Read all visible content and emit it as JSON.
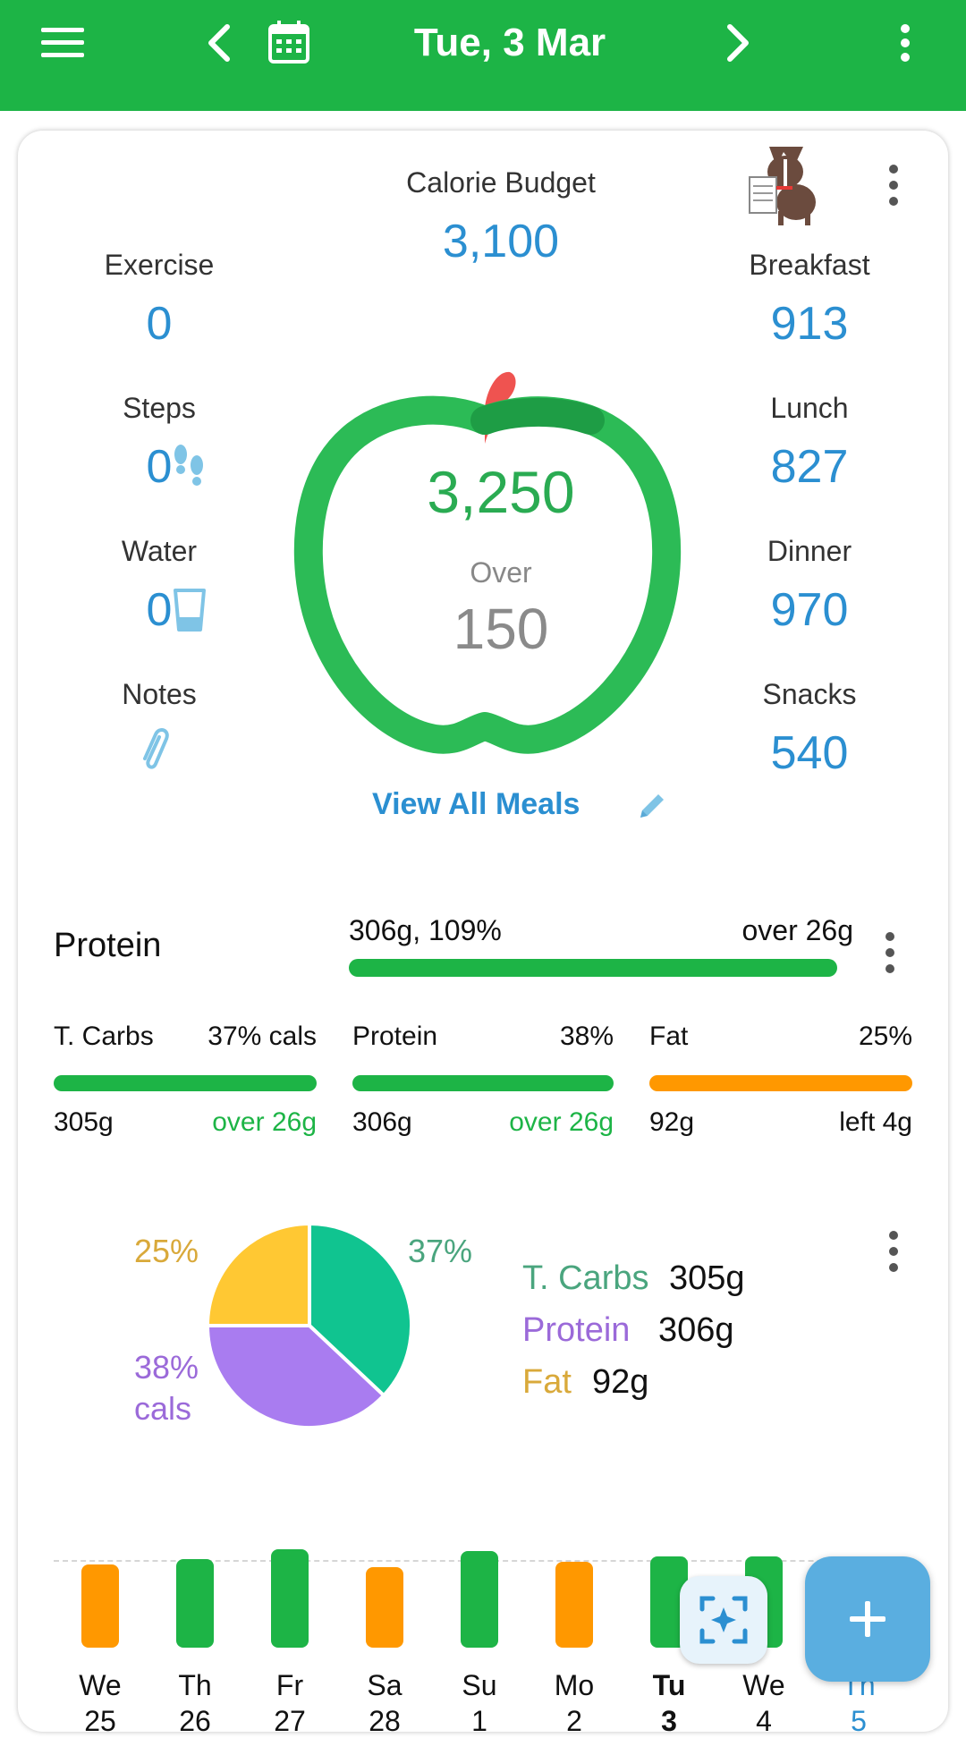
{
  "header": {
    "date": "Tue, 3 Mar",
    "icons": [
      "menu-icon",
      "chevron-left-icon",
      "calendar-icon",
      "chevron-right-icon",
      "more-vert-icon"
    ],
    "bg_color": "#1db446"
  },
  "summary": {
    "budget_label": "Calorie Budget",
    "budget_value": "3,100",
    "consumed": "3,250",
    "over_label": "Over",
    "over_value": "150",
    "view_all": "View All Meals",
    "left": [
      {
        "label": "Exercise",
        "value": "0"
      },
      {
        "label": "Steps",
        "value": "0"
      },
      {
        "label": "Water",
        "value": "0"
      },
      {
        "label": "Notes",
        "value": ""
      }
    ],
    "right": [
      {
        "label": "Breakfast",
        "value": "913"
      },
      {
        "label": "Lunch",
        "value": "827"
      },
      {
        "label": "Dinner",
        "value": "970"
      },
      {
        "label": "Snacks",
        "value": "540"
      }
    ]
  },
  "protein_goal": {
    "title": "Protein",
    "left_text": "306g, 109%",
    "right_text": "over 26g"
  },
  "macros": [
    {
      "name": "T. Carbs",
      "pct": "37% cals",
      "grams": "305g",
      "status": "over 26g",
      "color": "#1db446"
    },
    {
      "name": "Protein",
      "pct": "38%",
      "grams": "306g",
      "status": "over 26g",
      "color": "#1db446"
    },
    {
      "name": "Fat",
      "pct": "25%",
      "grams": "92g",
      "status": "left 4g",
      "color": "#ff9800"
    }
  ],
  "chart_data": {
    "type": "pie",
    "slices": [
      {
        "name": "T. Carbs",
        "value": 37,
        "label": "37%",
        "color": "#10c490"
      },
      {
        "name": "Protein",
        "value": 38,
        "label": "38%",
        "sub": "cals",
        "color": "#a97cf0"
      },
      {
        "name": "Fat",
        "value": 25,
        "label": "25%",
        "color": "#ffc833"
      }
    ],
    "legend": [
      {
        "name": "T. Carbs",
        "amount": "305g",
        "color": "#4aa57e"
      },
      {
        "name": "Protein",
        "amount": "306g",
        "color": "#9b6ad9"
      },
      {
        "name": "Fat",
        "amount": "92g",
        "color": "#d9a93a"
      }
    ]
  },
  "week": [
    {
      "day": "We",
      "date": "25",
      "level": 0.62,
      "color": "#ff9800",
      "bold": false
    },
    {
      "day": "Th",
      "date": "26",
      "level": 0.66,
      "color": "#1db446",
      "bold": false
    },
    {
      "day": "Fr",
      "date": "27",
      "level": 0.73,
      "color": "#1db446",
      "bold": false
    },
    {
      "day": "Sa",
      "date": "28",
      "level": 0.6,
      "color": "#ff9800",
      "bold": false
    },
    {
      "day": "Su",
      "date": "1",
      "level": 0.72,
      "color": "#1db446",
      "bold": false
    },
    {
      "day": "Mo",
      "date": "2",
      "level": 0.64,
      "color": "#ff9800",
      "bold": false
    },
    {
      "day": "Tu",
      "date": "3",
      "level": 0.68,
      "color": "#1db446",
      "bold": true
    },
    {
      "day": "We",
      "date": "4",
      "level": 0.68,
      "color": "#1db446",
      "bold": false
    },
    {
      "day": "Th",
      "date": "5",
      "level": 0.0,
      "color": "#1db446",
      "bold": false
    }
  ]
}
